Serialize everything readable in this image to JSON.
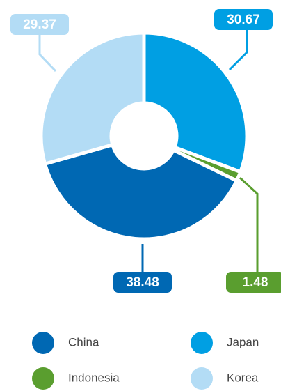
{
  "chart_data": {
    "type": "donut",
    "categories": [
      "Japan",
      "Indonesia",
      "China",
      "Korea"
    ],
    "values": [
      30.67,
      1.48,
      38.48,
      29.37
    ],
    "colors": [
      "#009fe3",
      "#5a9e2f",
      "#0068b3",
      "#b3dcf5"
    ]
  }
}
